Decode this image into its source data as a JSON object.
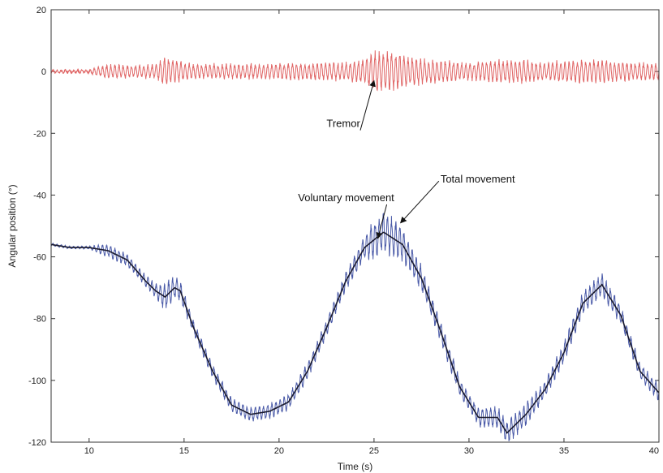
{
  "chart_data": {
    "type": "line",
    "title": "",
    "xlabel": "Time (s)",
    "ylabel": "Angular position (°)",
    "xlim": [
      8,
      40
    ],
    "ylim": [
      -120,
      20
    ],
    "xticks": [
      10,
      15,
      20,
      25,
      30,
      35,
      40
    ],
    "yticks": [
      20,
      0,
      -20,
      -40,
      -60,
      -80,
      -100,
      -120
    ],
    "grid": false,
    "legend": "none",
    "series": [
      {
        "key": "tremor",
        "color": "#e06666",
        "tremor_amplitude": [
          [
            8,
            0.5
          ],
          [
            10,
            0.5
          ],
          [
            11,
            2.5
          ],
          [
            12.5,
            2.0
          ],
          [
            13.5,
            2.5
          ],
          [
            14,
            5.0
          ],
          [
            14.5,
            4.0
          ],
          [
            15.5,
            2.5
          ],
          [
            17,
            2.5
          ],
          [
            19,
            2.5
          ],
          [
            21,
            3.0
          ],
          [
            23,
            3.0
          ],
          [
            24.5,
            4.0
          ],
          [
            25,
            7.0
          ],
          [
            26,
            7.0
          ],
          [
            27,
            5.0
          ],
          [
            28,
            4.0
          ],
          [
            30,
            3.0
          ],
          [
            31.5,
            4.0
          ],
          [
            33,
            4.0
          ],
          [
            34,
            3.0
          ],
          [
            35.5,
            4.0
          ],
          [
            37,
            4.0
          ],
          [
            38.5,
            3.0
          ],
          [
            40,
            3.0
          ]
        ]
      },
      {
        "key": "total",
        "color": "#4a5aa8",
        "x": [
          8,
          9,
          10,
          11,
          12,
          13,
          13.5,
          14,
          14.5,
          14.8,
          15.5,
          16.5,
          17.5,
          18.5,
          19.5,
          20.5,
          21.5,
          22.5,
          23.5,
          24.5,
          25.5,
          26.5,
          27.5,
          28.5,
          29.5,
          30.5,
          31.5,
          32,
          33,
          34,
          35,
          36,
          37,
          38,
          39,
          40
        ],
        "y": [
          -56,
          -57,
          -57,
          -58,
          -61,
          -68,
          -71,
          -73,
          -70,
          -71,
          -83,
          -97,
          -108,
          -111,
          -110,
          -107,
          -97,
          -83,
          -68,
          -57,
          -52,
          -56,
          -67,
          -84,
          -102,
          -112,
          -112,
          -117,
          -111,
          -103,
          -91,
          -75,
          -69,
          -79,
          -97,
          -104
        ]
      },
      {
        "key": "voluntary",
        "color": "#1a1a2e",
        "x": [
          8,
          9,
          10,
          11,
          12,
          13,
          13.5,
          14,
          14.5,
          14.8,
          15.5,
          16.5,
          17.5,
          18.5,
          19.5,
          20.5,
          21.5,
          22.5,
          23.5,
          24.5,
          25.5,
          26.5,
          27.5,
          28.5,
          29.5,
          30.5,
          31.5,
          32,
          33,
          34,
          35,
          36,
          37,
          38,
          39,
          40
        ],
        "y": [
          -56,
          -57,
          -57,
          -58,
          -61,
          -68,
          -71,
          -73,
          -70,
          -71,
          -83,
          -97,
          -108,
          -111,
          -110,
          -107,
          -97,
          -83,
          -68,
          -57,
          -52,
          -56,
          -67,
          -84,
          -102,
          -112,
          -112,
          -117,
          -111,
          -103,
          -91,
          -75,
          -69,
          -79,
          -97,
          -104
        ]
      }
    ],
    "annotations": [
      {
        "text": "Tremor",
        "target": [
          25,
          -3
        ],
        "text_pos": [
          22.5,
          -18
        ]
      },
      {
        "text": "Voluntary movement",
        "target": [
          25.2,
          -54
        ],
        "text_pos": [
          21,
          -42
        ]
      },
      {
        "text": "Total movement",
        "target": [
          26.4,
          -49
        ],
        "text_pos": [
          28.5,
          -36
        ]
      }
    ]
  }
}
